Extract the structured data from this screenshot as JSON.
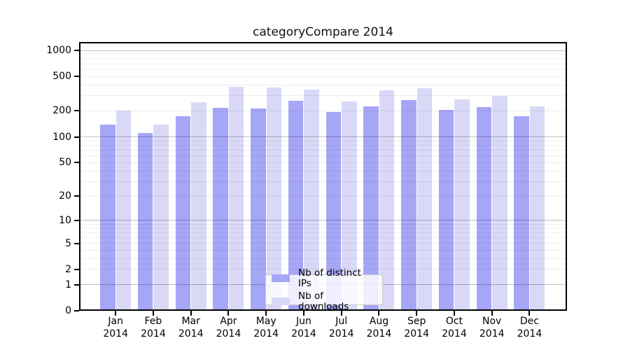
{
  "figure": {
    "title": "categoryCompare 2014"
  },
  "chart_data": {
    "type": "bar",
    "title": "categoryCompare 2014",
    "categories": [
      "Jan",
      "Feb",
      "Mar",
      "Apr",
      "May",
      "Jun",
      "Jul",
      "Aug",
      "Sep",
      "Oct",
      "Nov",
      "Dec"
    ],
    "year_label": "2014",
    "series": [
      {
        "name": "Nb of distinct IPs",
        "color": "#a6a6f7",
        "values": [
          140,
          111,
          174,
          216,
          213,
          262,
          194,
          227,
          265,
          206,
          221,
          175
        ]
      },
      {
        "name": "Nb of downloads",
        "color": "#d9d9f7",
        "values": [
          200,
          140,
          252,
          383,
          373,
          350,
          259,
          344,
          363,
          273,
          300,
          224
        ]
      }
    ],
    "y_ticks": [
      0,
      1,
      2,
      5,
      10,
      20,
      50,
      100,
      200,
      500,
      1000
    ],
    "y_scale": "log1p",
    "ylim": [
      0,
      1000
    ],
    "xlabel": "",
    "ylabel": "",
    "grid": "horizontal",
    "legend_position": "bottom-center",
    "gridline_major_values": [
      1,
      10,
      100,
      1000
    ],
    "gridline_minor_values": [
      2,
      3,
      4,
      5,
      6,
      7,
      8,
      9,
      20,
      30,
      40,
      50,
      60,
      70,
      80,
      90,
      200,
      300,
      400,
      500,
      600,
      700,
      800,
      900
    ]
  }
}
